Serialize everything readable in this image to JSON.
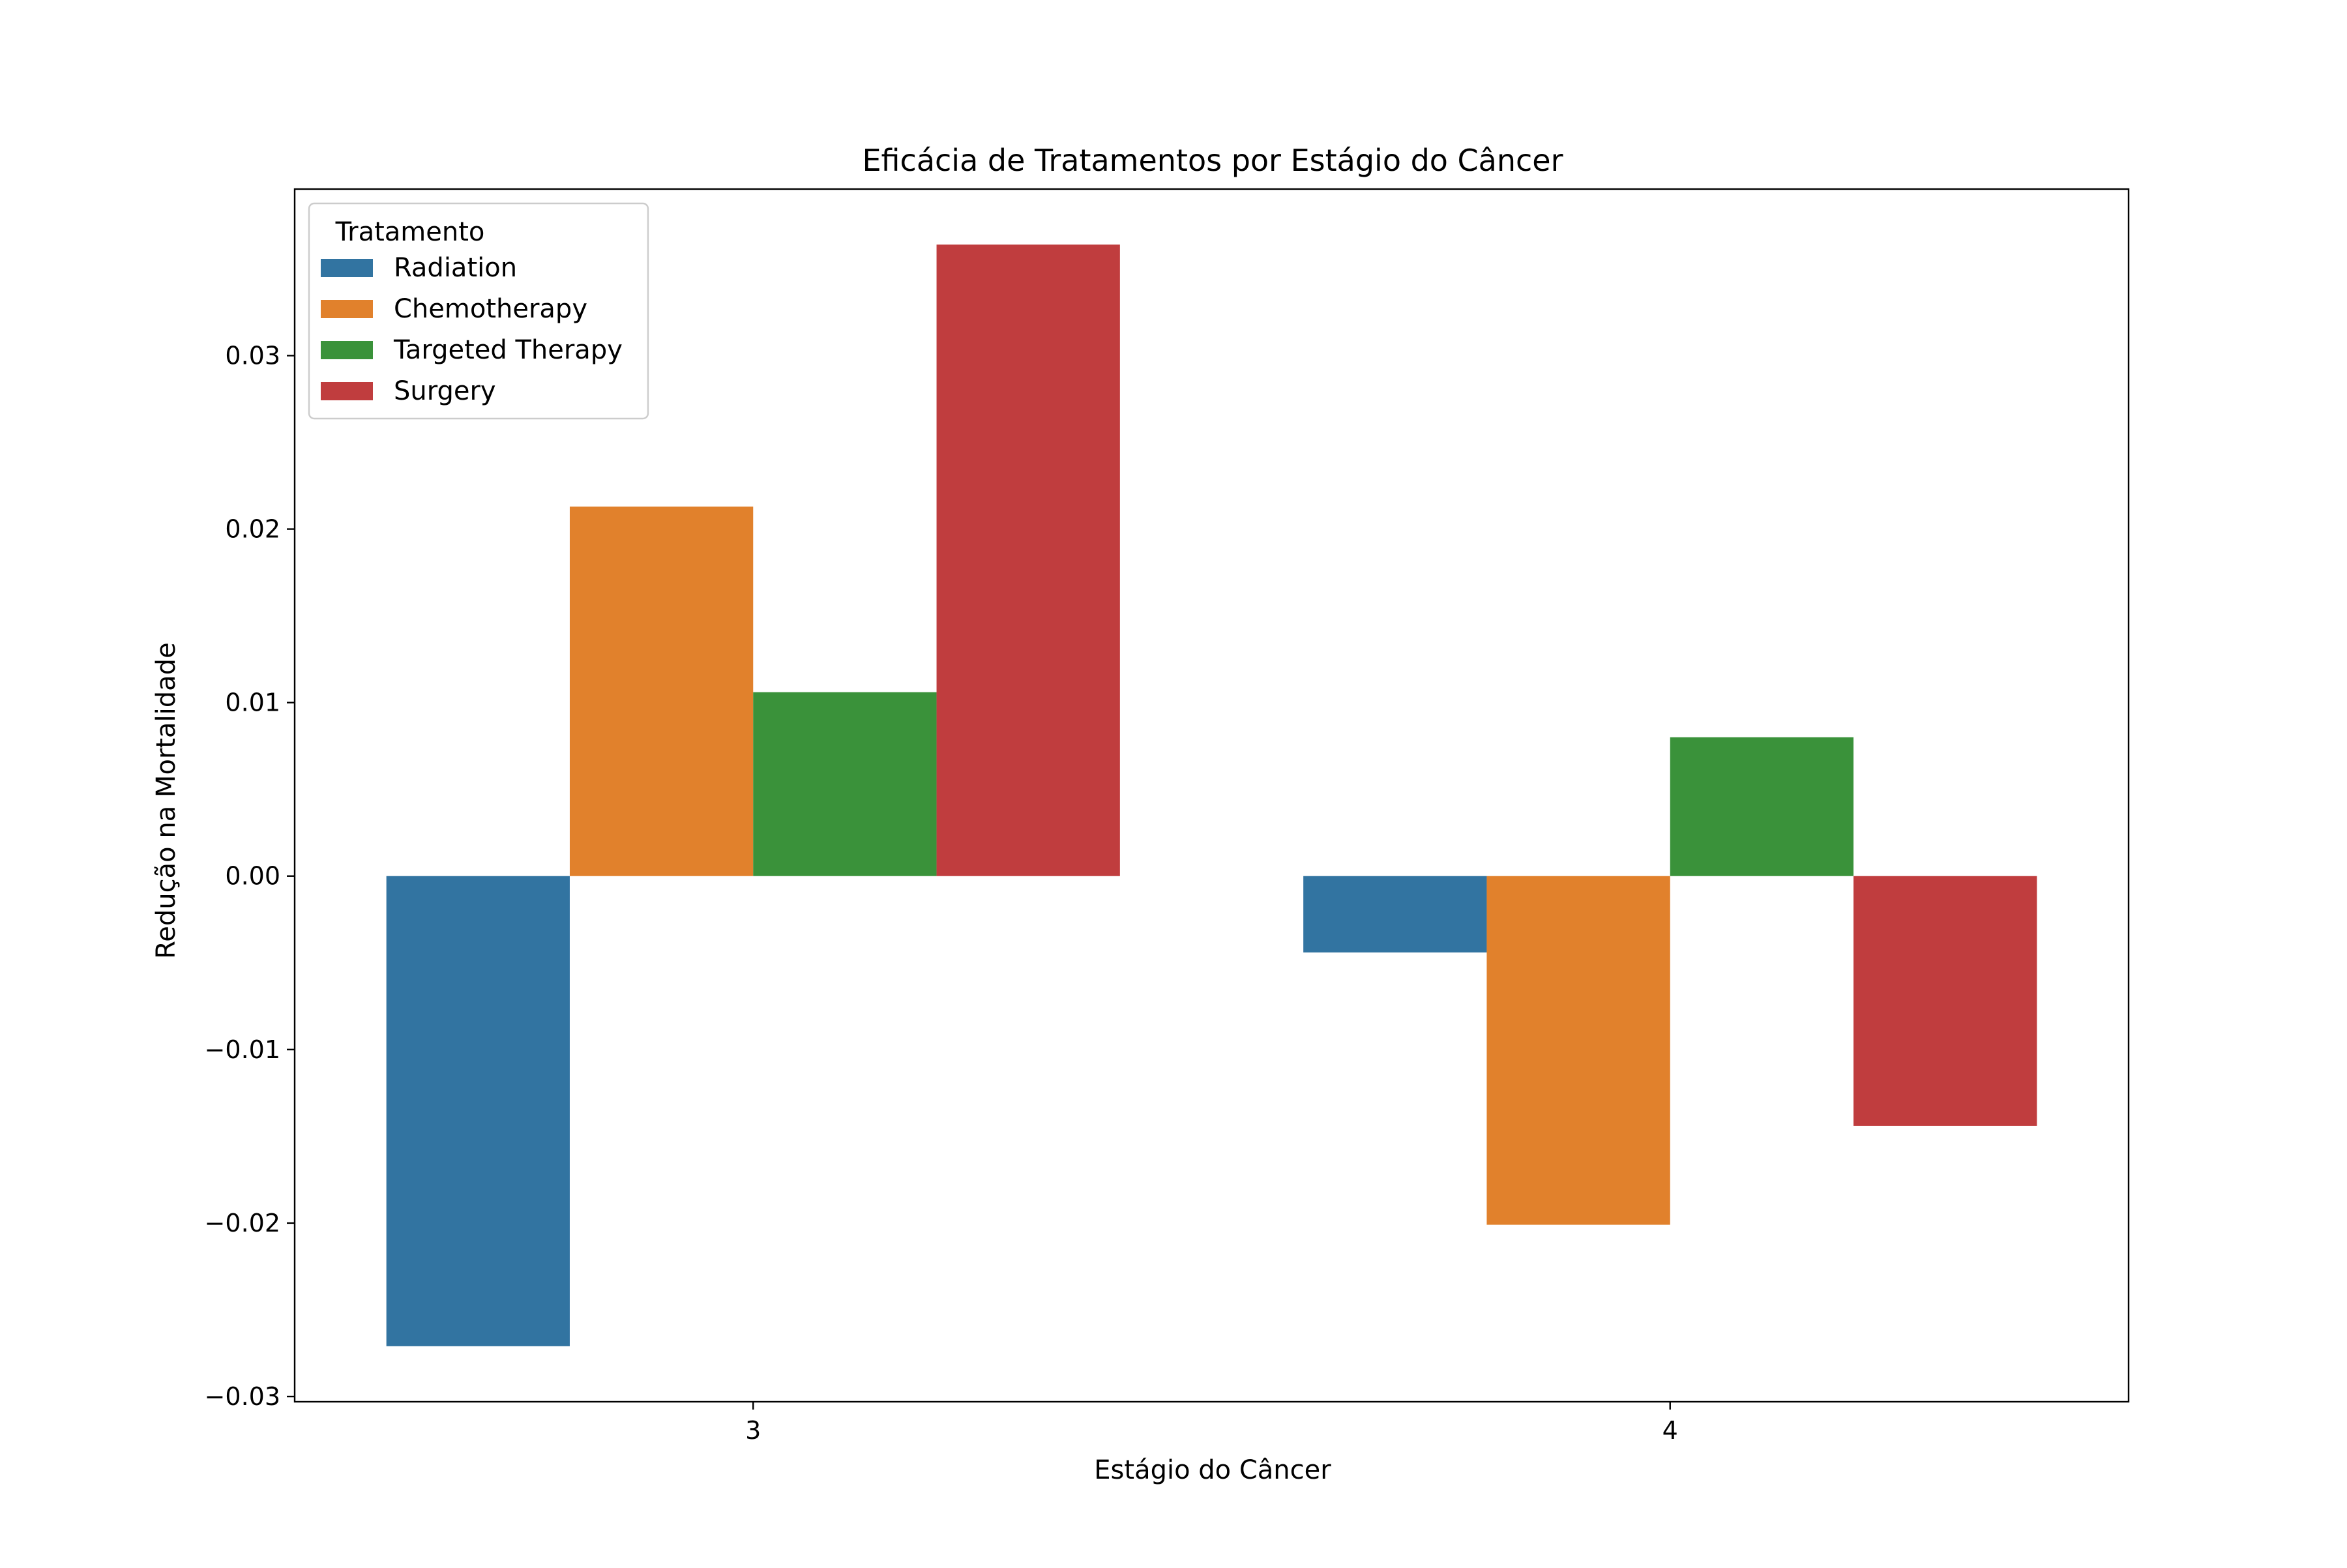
{
  "chart_data": {
    "type": "bar",
    "title": "Eficácia de Tratamentos por Estágio do Câncer",
    "xlabel": "Estágio do Câncer",
    "ylabel": "Redução na Mortalidade",
    "categories": [
      "3",
      "4"
    ],
    "series": [
      {
        "name": "Radiation",
        "color": "#3274a1",
        "values": [
          -0.0271,
          -0.0044
        ]
      },
      {
        "name": "Chemotherapy",
        "color": "#e1812c",
        "values": [
          0.0213,
          -0.0201
        ]
      },
      {
        "name": "Targeted Therapy",
        "color": "#3a923a",
        "values": [
          0.0106,
          0.008
        ]
      },
      {
        "name": "Surgery",
        "color": "#c03d3e",
        "values": [
          0.0364,
          -0.0144
        ]
      }
    ],
    "seriesOrderNote": null,
    "ylim": [
      -0.0303,
      0.0396
    ],
    "yticks": [
      -0.03,
      -0.02,
      -0.01,
      0.0,
      0.01,
      0.02,
      0.03
    ],
    "ytick_labels": [
      "−0.03",
      "−0.02",
      "−0.01",
      "0.00",
      "0.01",
      "0.02",
      "0.03"
    ],
    "legend": {
      "title": "Tratamento",
      "position": "top-left"
    },
    "grid": false
  }
}
